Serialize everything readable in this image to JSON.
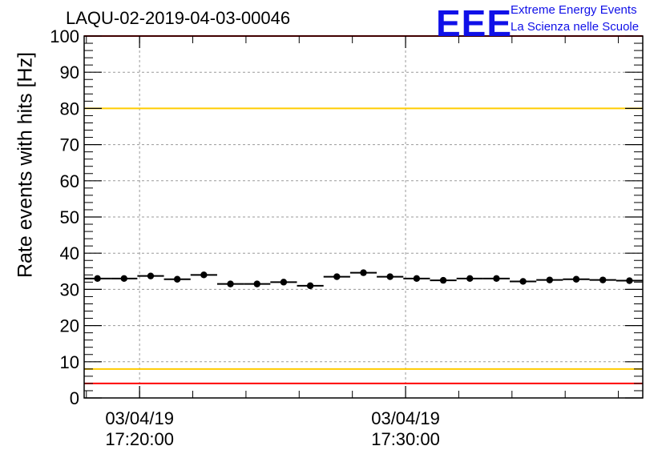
{
  "header": {
    "title": "LAQU-02-2019-04-03-00046",
    "logo_mark": "EEE",
    "logo_line1": "Extreme Energy Events",
    "logo_line2": "La Scienza nelle Scuole"
  },
  "colors": {
    "red_limit": "#ff0000",
    "yellow_limit": "#ffcc00",
    "logo_blue": "#1010e8",
    "grid": "#9a9a9a"
  },
  "chart_data": {
    "type": "scatter",
    "title": "LAQU-02-2019-04-03-00046",
    "ylabel": "Rate events with hits [Hz]",
    "xlabel": "",
    "ylim": [
      0,
      100
    ],
    "yticks": [
      0,
      10,
      20,
      30,
      40,
      50,
      60,
      70,
      80,
      90,
      100
    ],
    "xlim": [
      "2019-04-03 17:17:55",
      "2019-04-03 17:38:55"
    ],
    "xtick_labels": [
      {
        "time": "2019-04-03 17:20:00",
        "date_text": "03/04/19",
        "time_text": "17:20:00"
      },
      {
        "time": "2019-04-03 17:30:00",
        "date_text": "03/04/19",
        "time_text": "17:30:00"
      }
    ],
    "grid": true,
    "bin_width_seconds": 60,
    "series": [
      {
        "x": [
          "17:18:25",
          "17:19:25",
          "17:20:25",
          "17:21:25",
          "17:22:25",
          "17:23:25",
          "17:24:25",
          "17:25:25",
          "17:26:25",
          "17:27:25",
          "17:28:25",
          "17:29:25",
          "17:30:25",
          "17:31:25",
          "17:32:25",
          "17:33:25",
          "17:34:25",
          "17:35:25",
          "17:36:25",
          "17:37:25",
          "17:38:25"
        ],
        "y": [
          33.0,
          33.0,
          33.7,
          32.8,
          34.0,
          31.5,
          31.5,
          32.0,
          31.0,
          33.5,
          34.6,
          33.5,
          33.0,
          32.5,
          33.0,
          33.0,
          32.2,
          32.6,
          32.8,
          32.6,
          32.4
        ]
      }
    ],
    "reference_lines": [
      {
        "y": 100,
        "color": "red"
      },
      {
        "y": 4,
        "color": "red"
      },
      {
        "y": 80,
        "color": "yellow"
      },
      {
        "y": 8,
        "color": "yellow"
      }
    ]
  }
}
